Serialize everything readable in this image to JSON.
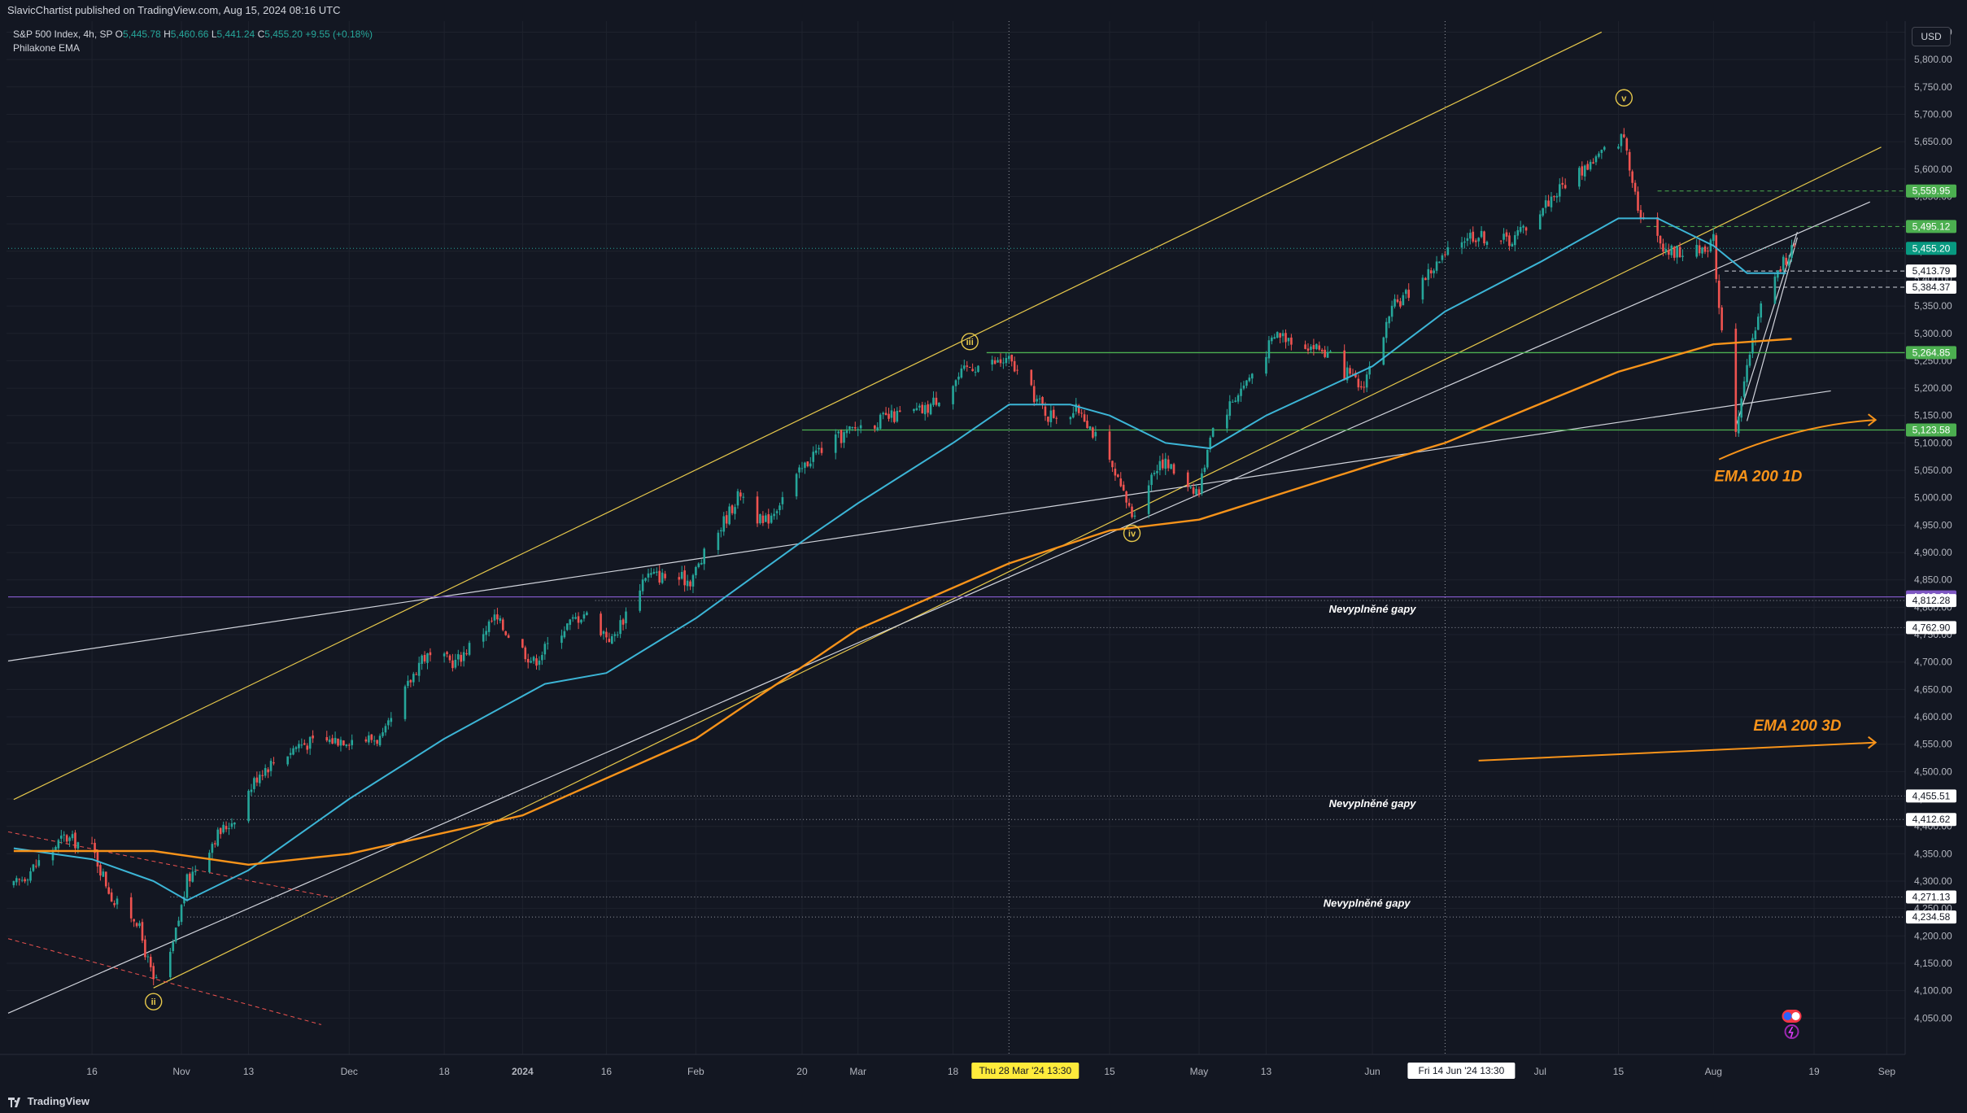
{
  "publisher_line": "SlavicChartist published on TradingView.com, Aug 15, 2024 08:16 UTC",
  "legend": {
    "symbol": "S&P 500 Index, 4h, SP",
    "o_label": "O",
    "o_value": "5,445.78",
    "h_label": "H",
    "h_value": "5,460.66",
    "l_label": "L",
    "l_value": "5,441.24",
    "c_label": "C",
    "c_value": "5,455.20",
    "change": "+9.55 (+0.18%)",
    "indicator": "Philakone EMA"
  },
  "currency_button": "USD",
  "footer_brand": "TradingView",
  "colors": {
    "background": "#131722",
    "up": "#26a69a",
    "down": "#ef5350",
    "ema_short": "#3cb5d6",
    "ema_long": "#f7931a",
    "channel": "#e6c84b",
    "trend_white": "#d1d4dc",
    "support_green": "#4caf50",
    "purple_level": "#7e57c2"
  },
  "chart_data": {
    "type": "candlestick",
    "timeframe": "4h",
    "ylim": [
      4000,
      5870
    ],
    "y_ticks": [
      "5,850.00",
      "5,800.00",
      "5,750.00",
      "5,700.00",
      "5,650.00",
      "5,600.00",
      "5,550.00",
      "5,500.00",
      "5,450.00",
      "5,400.00",
      "5,350.00",
      "5,300.00",
      "5,250.00",
      "5,200.00",
      "5,150.00",
      "5,100.00",
      "5,050.00",
      "5,000.00",
      "4,950.00",
      "4,900.00",
      "4,850.00",
      "4,800.00",
      "4,750.00",
      "4,700.00",
      "4,650.00",
      "4,600.00",
      "4,550.00",
      "4,500.00",
      "4,450.00",
      "4,400.00",
      "4,350.00",
      "4,300.00",
      "4,250.00",
      "4,200.00",
      "4,150.00",
      "4,100.00",
      "4,050.00"
    ],
    "x_ticks": [
      {
        "label": "16",
        "date": "2023-10-16"
      },
      {
        "label": "Nov",
        "date": "2023-11-01"
      },
      {
        "label": "13",
        "date": "2023-11-13"
      },
      {
        "label": "Dec",
        "date": "2023-12-01"
      },
      {
        "label": "18",
        "date": "2023-12-18"
      },
      {
        "label": "2024",
        "date": "2024-01-01"
      },
      {
        "label": "16",
        "date": "2024-01-16"
      },
      {
        "label": "Feb",
        "date": "2024-02-01"
      },
      {
        "label": "20",
        "date": "2024-02-20"
      },
      {
        "label": "Mar",
        "date": "2024-03-01"
      },
      {
        "label": "18",
        "date": "2024-03-18"
      },
      {
        "label": "15",
        "date": "2024-04-15"
      },
      {
        "label": "May",
        "date": "2024-05-01"
      },
      {
        "label": "13",
        "date": "2024-05-13"
      },
      {
        "label": "Jun",
        "date": "2024-06-01"
      },
      {
        "label": "Jul",
        "date": "2024-07-01"
      },
      {
        "label": "15",
        "date": "2024-07-15"
      },
      {
        "label": "Aug",
        "date": "2024-08-01"
      },
      {
        "label": "19",
        "date": "2024-08-19"
      },
      {
        "label": "Sep",
        "date": "2024-09-01"
      }
    ],
    "crosshair_labels": [
      {
        "label": "Thu 28 Mar '24   13:30",
        "date": "2024-03-28"
      },
      {
        "label": "Fri 14 Jun '24   13:30",
        "date": "2024-06-14"
      }
    ],
    "price_anchors": [
      [
        "2023-10-02",
        4290
      ],
      [
        "2023-10-06",
        4330
      ],
      [
        "2023-10-11",
        4380
      ],
      [
        "2023-10-16",
        4360
      ],
      [
        "2023-10-20",
        4260
      ],
      [
        "2023-10-24",
        4230
      ],
      [
        "2023-10-27",
        4115
      ],
      [
        "2023-10-30",
        4160
      ],
      [
        "2023-11-02",
        4300
      ],
      [
        "2023-11-07",
        4380
      ],
      [
        "2023-11-10",
        4410
      ],
      [
        "2023-11-15",
        4500
      ],
      [
        "2023-11-22",
        4550
      ],
      [
        "2023-11-30",
        4560
      ],
      [
        "2023-12-07",
        4560
      ],
      [
        "2023-12-14",
        4710
      ],
      [
        "2023-12-20",
        4700
      ],
      [
        "2023-12-27",
        4780
      ],
      [
        "2024-01-03",
        4700
      ],
      [
        "2024-01-08",
        4760
      ],
      [
        "2024-01-12",
        4790
      ],
      [
        "2024-01-17",
        4740
      ],
      [
        "2024-01-23",
        4860
      ],
      [
        "2024-01-31",
        4850
      ],
      [
        "2024-02-09",
        5010
      ],
      [
        "2024-02-13",
        4950
      ],
      [
        "2024-02-22",
        5080
      ],
      [
        "2024-03-01",
        5130
      ],
      [
        "2024-03-08",
        5150
      ],
      [
        "2024-03-13",
        5160
      ],
      [
        "2024-03-21",
        5240
      ],
      [
        "2024-03-28",
        5250
      ],
      [
        "2024-04-04",
        5150
      ],
      [
        "2024-04-10",
        5160
      ],
      [
        "2024-04-15",
        5060
      ],
      [
        "2024-04-19",
        4970
      ],
      [
        "2024-04-24",
        5070
      ],
      [
        "2024-05-01",
        5010
      ],
      [
        "2024-05-03",
        5120
      ],
      [
        "2024-05-10",
        5220
      ],
      [
        "2024-05-15",
        5300
      ],
      [
        "2024-05-23",
        5270
      ],
      [
        "2024-05-30",
        5200
      ],
      [
        "2024-06-05",
        5350
      ],
      [
        "2024-06-12",
        5420
      ],
      [
        "2024-06-18",
        5480
      ],
      [
        "2024-06-26",
        5470
      ],
      [
        "2024-07-05",
        5570
      ],
      [
        "2024-07-11",
        5620
      ],
      [
        "2024-07-16",
        5660
      ],
      [
        "2024-07-19",
        5510
      ],
      [
        "2024-07-24",
        5450
      ],
      [
        "2024-07-29",
        5450
      ],
      [
        "2024-08-01",
        5470
      ],
      [
        "2024-08-02",
        5350
      ],
      [
        "2024-08-05",
        5130
      ],
      [
        "2024-08-07",
        5230
      ],
      [
        "2024-08-09",
        5340
      ],
      [
        "2024-08-13",
        5420
      ],
      [
        "2024-08-15",
        5455
      ]
    ],
    "ema_short_points": [
      [
        "2023-10-02",
        4360
      ],
      [
        "2023-10-16",
        4340
      ],
      [
        "2023-10-27",
        4300
      ],
      [
        "2023-11-02",
        4265
      ],
      [
        "2023-11-13",
        4320
      ],
      [
        "2023-12-01",
        4450
      ],
      [
        "2023-12-18",
        4560
      ],
      [
        "2024-01-05",
        4660
      ],
      [
        "2024-01-16",
        4680
      ],
      [
        "2024-02-01",
        4780
      ],
      [
        "2024-02-20",
        4920
      ],
      [
        "2024-03-01",
        4990
      ],
      [
        "2024-03-18",
        5100
      ],
      [
        "2024-03-28",
        5170
      ],
      [
        "2024-04-08",
        5170
      ],
      [
        "2024-04-15",
        5150
      ],
      [
        "2024-04-25",
        5100
      ],
      [
        "2024-05-03",
        5090
      ],
      [
        "2024-05-13",
        5150
      ],
      [
        "2024-06-01",
        5240
      ],
      [
        "2024-06-14",
        5340
      ],
      [
        "2024-07-01",
        5430
      ],
      [
        "2024-07-15",
        5510
      ],
      [
        "2024-07-22",
        5510
      ],
      [
        "2024-08-01",
        5460
      ],
      [
        "2024-08-07",
        5410
      ],
      [
        "2024-08-14",
        5410
      ]
    ],
    "ema_long_points": [
      [
        "2023-10-02",
        4355
      ],
      [
        "2023-10-27",
        4355
      ],
      [
        "2023-11-13",
        4330
      ],
      [
        "2023-12-01",
        4350
      ],
      [
        "2024-01-01",
        4420
      ],
      [
        "2024-02-01",
        4560
      ],
      [
        "2024-03-01",
        4760
      ],
      [
        "2024-03-28",
        4880
      ],
      [
        "2024-04-15",
        4940
      ],
      [
        "2024-05-01",
        4960
      ],
      [
        "2024-06-01",
        5060
      ],
      [
        "2024-06-14",
        5100
      ],
      [
        "2024-07-15",
        5230
      ],
      [
        "2024-08-01",
        5280
      ],
      [
        "2024-08-15",
        5290
      ]
    ],
    "horizontal_levels": [
      {
        "label": "5,559.95",
        "value": 5559.95,
        "style": "dashed",
        "tag": "green"
      },
      {
        "label": "5,495.12",
        "value": 5495.12,
        "style": "dashed",
        "tag": "green"
      },
      {
        "label": "5,455.20",
        "value": 5455.2,
        "style": "dotted",
        "tag": "teal"
      },
      {
        "label": "5,413.79",
        "value": 5413.79,
        "style": "dashed",
        "tag": "white"
      },
      {
        "label": "5,384.37",
        "value": 5384.37,
        "style": "dashed",
        "tag": "white"
      },
      {
        "label": "5,264.85",
        "value": 5264.85,
        "style": "solid",
        "tag": "green"
      },
      {
        "label": "5,123.58",
        "value": 5123.58,
        "style": "solid",
        "tag": "green"
      },
      {
        "label": "4,818.94",
        "value": 4818.94,
        "style": "solid",
        "tag": "purple"
      },
      {
        "label": "4,812.28",
        "value": 4812.28,
        "style": "dotted",
        "tag": "white"
      },
      {
        "label": "4,762.90",
        "value": 4762.9,
        "style": "dotted",
        "tag": "white"
      },
      {
        "label": "4,455.51",
        "value": 4455.51,
        "style": "dotted",
        "tag": "white"
      },
      {
        "label": "4,412.62",
        "value": 4412.62,
        "style": "dotted",
        "tag": "white"
      },
      {
        "label": "4,271.13",
        "value": 4271.13,
        "style": "dotted",
        "tag": "white"
      },
      {
        "label": "4,234.58",
        "value": 4234.58,
        "style": "dotted",
        "tag": "white"
      }
    ],
    "annotations": [
      {
        "text": "Nevyplněné gapy",
        "date": "2024-06-01",
        "value": 4790
      },
      {
        "text": "Nevyplněné gapy",
        "date": "2024-06-01",
        "value": 4435
      },
      {
        "text": "Nevyplněné gapy",
        "date": "2024-05-31",
        "value": 4253
      },
      {
        "text": "EMA 200 1D",
        "date": "2024-08-09",
        "value": 5030
      },
      {
        "text": "EMA 200 3D",
        "date": "2024-08-16",
        "value": 4575
      }
    ],
    "wave_labels": [
      {
        "text": "ii",
        "date": "2023-10-27",
        "value": 4080
      },
      {
        "text": "iii",
        "date": "2024-03-21",
        "value": 5285
      },
      {
        "text": "iv",
        "date": "2024-04-19",
        "value": 4935
      },
      {
        "text": "v",
        "date": "2024-07-16",
        "value": 5730
      }
    ]
  }
}
